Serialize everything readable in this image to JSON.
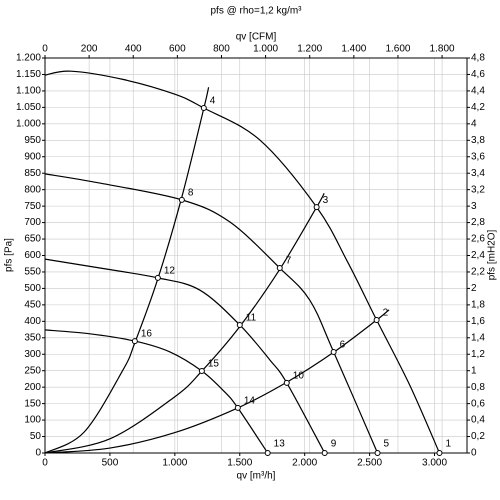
{
  "chart_data": {
    "type": "fan-curve",
    "title": "pfs @ rho=1,2 kg/m³",
    "x2_label": "qv [CFM]",
    "x_label": "qv [m³/h]",
    "y_label": "pfs [Pa]",
    "y2_label": "pfs [mH2O]",
    "xlim": [
      0,
      3250
    ],
    "xticks": [
      0,
      500,
      {
        "value": 1000,
        "label": "1.000"
      },
      {
        "value": 1500,
        "label": "1.500"
      },
      {
        "value": 2000,
        "label": "2.000"
      },
      {
        "value": 2500,
        "label": "2.500"
      },
      {
        "value": 3000,
        "label": "3.000"
      }
    ],
    "x2lim": [
      0,
      1913
    ],
    "x2ticks": [
      0,
      200,
      400,
      600,
      800,
      {
        "value": 1000,
        "label": "1.000"
      },
      {
        "value": 1200,
        "label": "1.200"
      },
      {
        "value": 1400,
        "label": "1.400"
      },
      {
        "value": 1600,
        "label": "1.600"
      },
      {
        "value": 1800,
        "label": "1.800"
      }
    ],
    "ylim": [
      0,
      1200
    ],
    "yticks": [
      0,
      50,
      100,
      150,
      200,
      250,
      300,
      350,
      400,
      450,
      500,
      550,
      600,
      650,
      700,
      750,
      800,
      850,
      900,
      950,
      {
        "value": 1000,
        "label": "1.000"
      },
      {
        "value": 1050,
        "label": "1.050"
      },
      {
        "value": 1100,
        "label": "1.100"
      },
      {
        "value": 1150,
        "label": "1.150"
      },
      {
        "value": 1200,
        "label": "1.200"
      }
    ],
    "y2lim": [
      0,
      4.8
    ],
    "y2ticks": [
      0,
      {
        "value": 0.2,
        "label": "0,2"
      },
      {
        "value": 0.4,
        "label": "0,4"
      },
      {
        "value": 0.6,
        "label": "0,6"
      },
      {
        "value": 0.8,
        "label": "0,8"
      },
      1,
      {
        "value": 1.2,
        "label": "1,2"
      },
      {
        "value": 1.4,
        "label": "1,4"
      },
      {
        "value": 1.6,
        "label": "1,6"
      },
      {
        "value": 1.8,
        "label": "1,8"
      },
      2,
      {
        "value": 2.2,
        "label": "2,2"
      },
      {
        "value": 2.4,
        "label": "2,4"
      },
      {
        "value": 2.6,
        "label": "2,6"
      },
      {
        "value": 2.8,
        "label": "2,8"
      },
      3,
      {
        "value": 3.2,
        "label": "3,2"
      },
      {
        "value": 3.4,
        "label": "3,4"
      },
      {
        "value": 3.6,
        "label": "3,6"
      },
      {
        "value": 3.8,
        "label": "3,8"
      },
      4,
      {
        "value": 4.2,
        "label": "4,2"
      },
      {
        "value": 4.4,
        "label": "4,4"
      },
      {
        "value": 4.6,
        "label": "4,6"
      },
      {
        "value": 4.8,
        "label": "4,8"
      }
    ],
    "grid": true,
    "color": "#000000",
    "fan_curves": [
      {
        "x": [
          0,
          200,
          600,
          1000,
          1223,
          1654,
          2092,
          2331,
          2554,
          2808,
          3038
        ],
        "values": [
          1148,
          1160,
          1135,
          1090,
          1048,
          951,
          747,
          580,
          404,
          207,
          0
        ]
      },
      {
        "x": [
          0,
          423,
          1054,
          1423,
          1808,
          2038,
          2223,
          2561
        ],
        "values": [
          848,
          820,
          769,
          702,
          562,
          465,
          307,
          0
        ]
      },
      {
        "x": [
          0,
          423,
          869,
          1192,
          1500,
          1731,
          1862,
          2154
        ],
        "values": [
          589,
          562,
          532,
          495,
          389,
          283,
          213,
          0
        ]
      },
      {
        "x": [
          0,
          346,
          692,
          962,
          1208,
          1385,
          1485,
          1715
        ],
        "values": [
          374,
          362,
          340,
          307,
          249,
          185,
          137,
          0
        ]
      }
    ],
    "system_curves": [
      {
        "x": [
          0,
          300,
          600,
          692,
          869,
          1054,
          1223,
          1260
        ],
        "values": [
          0,
          63,
          252,
          335,
          529,
          778,
          1047,
          1111
        ]
      },
      {
        "x": [
          0,
          500,
          1000,
          1208,
          1500,
          1808,
          2092,
          2150
        ],
        "values": [
          0,
          43,
          171,
          249,
          384,
          558,
          747,
          789
        ]
      },
      {
        "x": [
          0,
          500,
          1000,
          1485,
          1862,
          2223,
          2554,
          2650
        ],
        "values": [
          0,
          15,
          62,
          137,
          215,
          306,
          404,
          435
        ]
      }
    ],
    "points": [
      {
        "label": "1",
        "x": 3038,
        "y": 0
      },
      {
        "label": "2",
        "x": 2554,
        "y": 404
      },
      {
        "label": "3",
        "x": 2092,
        "y": 747
      },
      {
        "label": "4",
        "x": 1223,
        "y": 1048
      },
      {
        "label": "5",
        "x": 2561,
        "y": 0
      },
      {
        "label": "6",
        "x": 2223,
        "y": 307
      },
      {
        "label": "7",
        "x": 1808,
        "y": 562
      },
      {
        "label": "8",
        "x": 1054,
        "y": 769
      },
      {
        "label": "9",
        "x": 2154,
        "y": 0
      },
      {
        "label": "10",
        "x": 1862,
        "y": 213
      },
      {
        "label": "11",
        "x": 1500,
        "y": 389
      },
      {
        "label": "12",
        "x": 869,
        "y": 532
      },
      {
        "label": "13",
        "x": 1715,
        "y": 0
      },
      {
        "label": "14",
        "x": 1485,
        "y": 137
      },
      {
        "label": "15",
        "x": 1208,
        "y": 249
      },
      {
        "label": "16",
        "x": 692,
        "y": 340
      }
    ]
  }
}
